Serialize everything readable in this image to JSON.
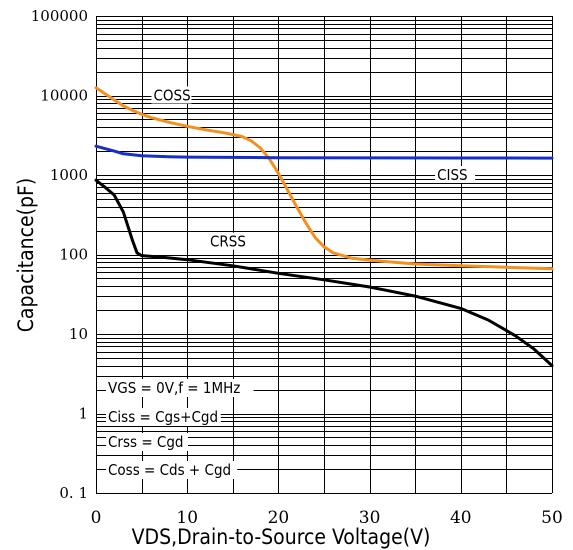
{
  "chart_data": {
    "type": "line",
    "title": "",
    "xlabel": "VDS,Drain-to-Source Voltage(V)",
    "ylabel": "Capacitance(pF)",
    "xlim": [
      0,
      50
    ],
    "ylim": [
      0.1,
      100000
    ],
    "yscale": "log",
    "x_ticks": [
      "0",
      "10",
      "20",
      "30",
      "40",
      "50"
    ],
    "y_ticks": [
      "0. 1",
      "1",
      "10",
      "100",
      "1000",
      "10000",
      "100000"
    ],
    "grid": true,
    "series": [
      {
        "name": "COSS",
        "color": "#f5901e",
        "points": [
          [
            0,
            12500
          ],
          [
            1,
            10500
          ],
          [
            2,
            8800
          ],
          [
            3,
            7400
          ],
          [
            4,
            6500
          ],
          [
            5,
            5800
          ],
          [
            6,
            5300
          ],
          [
            8,
            4600
          ],
          [
            10,
            4100
          ],
          [
            12,
            3700
          ],
          [
            14,
            3400
          ],
          [
            16,
            3050
          ],
          [
            17,
            2700
          ],
          [
            18,
            2200
          ],
          [
            19,
            1600
          ],
          [
            20,
            1050
          ],
          [
            21,
            650
          ],
          [
            22,
            400
          ],
          [
            23,
            250
          ],
          [
            24,
            165
          ],
          [
            25,
            125
          ],
          [
            26,
            105
          ],
          [
            28,
            90
          ],
          [
            30,
            85
          ],
          [
            35,
            76
          ],
          [
            40,
            72
          ],
          [
            45,
            69
          ],
          [
            50,
            66
          ]
        ]
      },
      {
        "name": "CISS",
        "color": "#1530c8",
        "points": [
          [
            0,
            2300
          ],
          [
            2,
            2000
          ],
          [
            3,
            1850
          ],
          [
            5,
            1750
          ],
          [
            8,
            1700
          ],
          [
            10,
            1680
          ],
          [
            20,
            1650
          ],
          [
            30,
            1640
          ],
          [
            40,
            1635
          ],
          [
            50,
            1630
          ]
        ]
      },
      {
        "name": "CRSS",
        "color": "#000000",
        "points": [
          [
            0,
            860
          ],
          [
            1,
            700
          ],
          [
            2,
            560
          ],
          [
            3,
            340
          ],
          [
            4,
            150
          ],
          [
            4.5,
            105
          ],
          [
            5,
            97
          ],
          [
            7,
            93
          ],
          [
            10,
            86
          ],
          [
            15,
            72
          ],
          [
            20,
            58
          ],
          [
            25,
            48
          ],
          [
            30,
            39
          ],
          [
            35,
            30
          ],
          [
            40,
            21
          ],
          [
            43,
            15
          ],
          [
            46,
            9.5
          ],
          [
            48,
            6.5
          ],
          [
            50,
            4
          ]
        ]
      }
    ],
    "annotations": [
      "VGS  = 0V,f = 1MHz",
      "Ciss = Cgs+Cgd",
      "Crss = Cgd",
      "Coss = Cds + Cgd"
    ]
  }
}
